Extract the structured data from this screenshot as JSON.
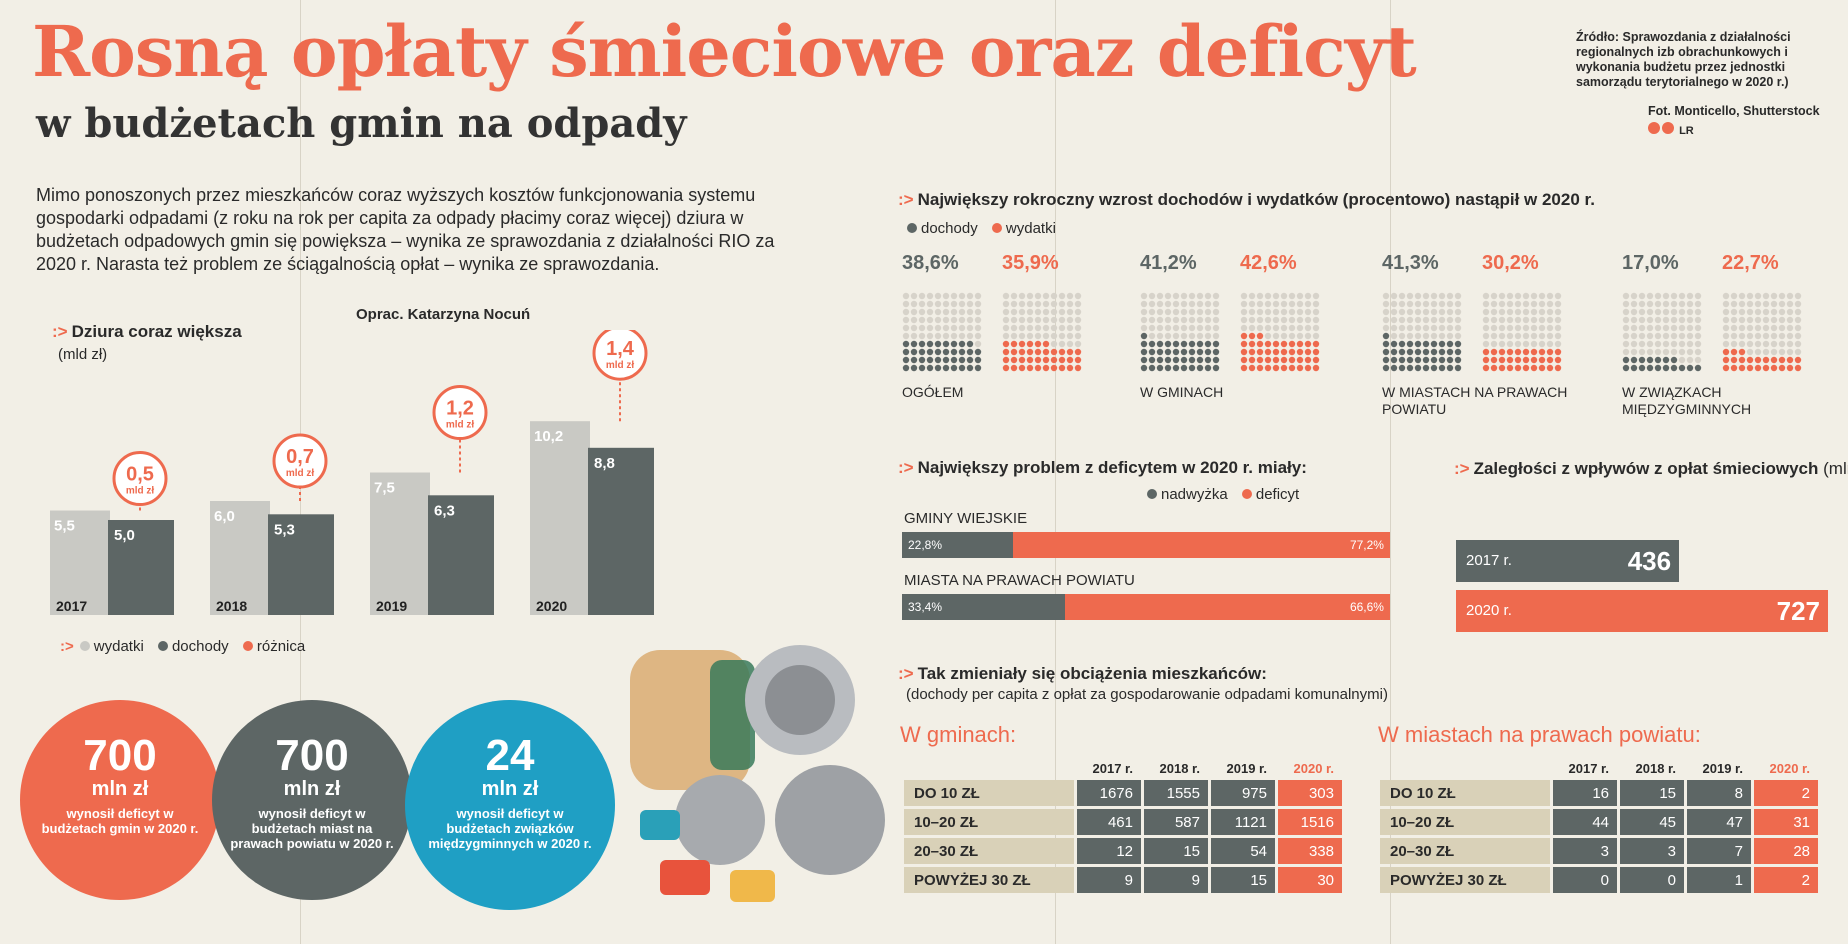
{
  "header": {
    "title": "Rosną opłaty śmieciowe oraz deficyt",
    "subtitle": "w budżetach gmin na odpady",
    "lead": "Mimo ponoszonych przez mieszkańców coraz wyższych kosztów funkcjonowania systemu gospodarki odpadami (z roku na rok per capita za odpady płacimy coraz więcej) dziura w budżetach odpadowych gmin się powiększa – wynika ze sprawozdania z działalności RIO za 2020 r. Narasta też problem ze ściągalnością opłat – wynika ze sprawozdania.",
    "author": "Oprac. Katarzyna Nocuń",
    "source": "Źródło: Sprawozdania z działalności regionalnych izb obrachunkowych i wykonania budżetu przez jednostki samorządu terytorialnego w 2020 r.)",
    "photo": "Fot. Monticello, Shutterstock",
    "license": "LR"
  },
  "colors": {
    "accent": "#ee6a4e",
    "dark": "#5d6665",
    "light": "#c9c9c4",
    "teal": "#1f9fc4",
    "beige": "#d9d1b8"
  },
  "chart_data": [
    {
      "type": "bar",
      "title": "Dziura coraz większa",
      "ylabel": "(mld zł)",
      "categories": [
        "2017",
        "2018",
        "2019",
        "2020"
      ],
      "series": [
        {
          "name": "wydatki",
          "values": [
            5.5,
            6.0,
            7.5,
            10.2
          ]
        },
        {
          "name": "dochody",
          "values": [
            5.0,
            5.3,
            6.3,
            8.8
          ]
        },
        {
          "name": "różnica",
          "values": [
            0.5,
            0.7,
            1.2,
            1.4
          ]
        }
      ],
      "diff_unit": "mld zł",
      "value_labels": {
        "wydatki": [
          "5,5",
          "6,0",
          "7,5",
          "10,2"
        ],
        "dochody": [
          "5,0",
          "5,3",
          "6,3",
          "8,8"
        ],
        "różnica": [
          "0,5",
          "0,7",
          "1,2",
          "1,4"
        ]
      },
      "legend": [
        "wydatki",
        "dochody",
        "różnica"
      ]
    },
    {
      "type": "bar",
      "title": "Największy rokroczny wzrost dochodów i wydatków (procentowo) nastąpił w 2020 r.",
      "legend": [
        "dochody",
        "wydatki"
      ],
      "categories": [
        "OGÓŁEM",
        "W GMINACH",
        "W MIASTACH NA PRAWACH POWIATU",
        "W ZWIĄZKACH MIĘDZYGMINNYCH"
      ],
      "series": [
        {
          "name": "dochody",
          "values": [
            38.6,
            41.2,
            41.3,
            17.0
          ]
        },
        {
          "name": "wydatki",
          "values": [
            35.9,
            42.6,
            30.2,
            22.7
          ]
        }
      ],
      "labels": {
        "dochody": [
          "38,6%",
          "41,2%",
          "41,3%",
          "17,0%"
        ],
        "wydatki": [
          "35,9%",
          "42,6%",
          "30,2%",
          "22,7%"
        ]
      }
    },
    {
      "type": "bar",
      "title": "Największy problem z deficytem w 2020 r. miały:",
      "legend": [
        "nadwyżka",
        "deficyt"
      ],
      "categories": [
        "GMINY WIEJSKIE",
        "MIASTA NA PRAWACH POWIATU"
      ],
      "series": [
        {
          "name": "nadwyżka",
          "values": [
            22.8,
            33.4
          ]
        },
        {
          "name": "deficyt",
          "values": [
            77.2,
            66.6
          ]
        }
      ],
      "labels": {
        "nadwyżka": [
          "22,8%",
          "33,4%"
        ],
        "deficyt": [
          "77,2%",
          "66,6%"
        ]
      }
    },
    {
      "type": "bar",
      "title": "Zaległości z wpływów z opłat śmieciowych",
      "unit": "(mln zł)",
      "categories": [
        "2017 r.",
        "2020 r."
      ],
      "values": [
        436,
        727
      ]
    },
    {
      "type": "table",
      "title": "Tak zmieniały się obciążenia mieszkańców:",
      "subtitle": "(dochody per capita z opłat za gospodarowanie odpadami komunalnymi)",
      "columns": [
        "2017 r.",
        "2018 r.",
        "2019 r.",
        "2020 r."
      ],
      "tables": [
        {
          "name": "W gminach:",
          "rows": [
            {
              "label": "DO 10 ZŁ",
              "values": [
                1676,
                1555,
                975,
                303
              ]
            },
            {
              "label": "10–20 ZŁ",
              "values": [
                461,
                587,
                1121,
                1516
              ]
            },
            {
              "label": "20–30 ZŁ",
              "values": [
                12,
                15,
                54,
                338
              ]
            },
            {
              "label": "POWYŻEJ 30 ZŁ",
              "values": [
                9,
                9,
                15,
                30
              ]
            }
          ]
        },
        {
          "name": "W miastach na prawach powiatu:",
          "rows": [
            {
              "label": "DO 10 ZŁ",
              "values": [
                16,
                15,
                8,
                2
              ]
            },
            {
              "label": "10–20 ZŁ",
              "values": [
                44,
                45,
                47,
                31
              ]
            },
            {
              "label": "20–30 ZŁ",
              "values": [
                3,
                3,
                7,
                28
              ]
            },
            {
              "label": "POWYŻEJ 30 ZŁ",
              "values": [
                0,
                0,
                1,
                2
              ]
            }
          ]
        }
      ]
    }
  ],
  "circles": [
    {
      "value": "700",
      "unit": "mln zł",
      "desc": "wynosił deficyt w budżetach gmin w 2020 r."
    },
    {
      "value": "700",
      "unit": "mln zł",
      "desc": "wynosił deficyt w budżetach miast na prawach powiatu w 2020 r."
    },
    {
      "value": "24",
      "unit": "mln zł",
      "desc": "wynosił deficyt w budżetach związków międzygminnych w 2020 r."
    }
  ]
}
